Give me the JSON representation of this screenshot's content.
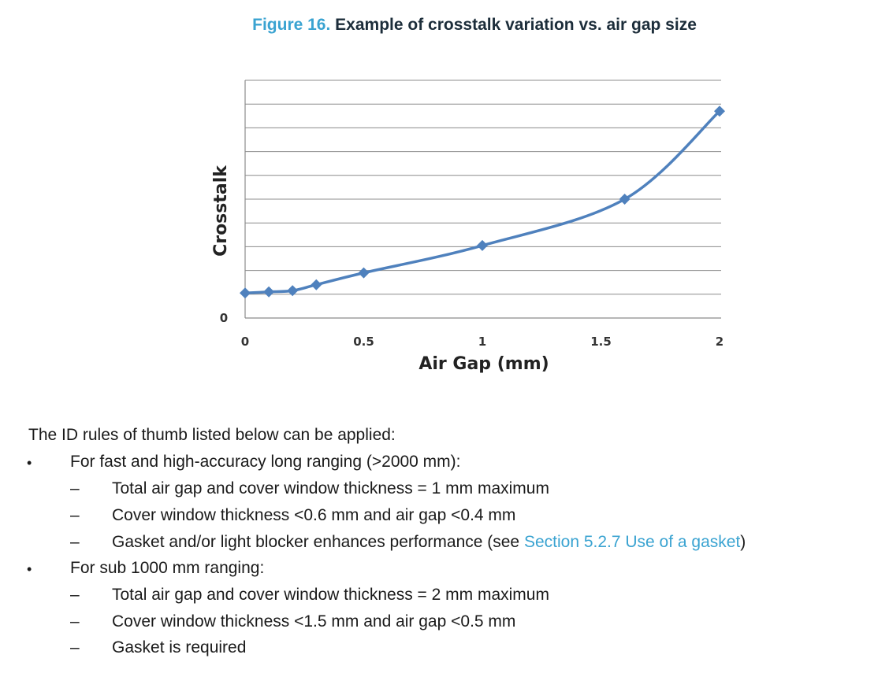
{
  "figure": {
    "number": "Figure 16.",
    "title": "Example of crosstalk variation vs. air gap size"
  },
  "chart_data": {
    "type": "line",
    "xlabel": "Air Gap (mm)",
    "ylabel": "Crosstalk",
    "x_ticks": [
      "0",
      "0.5",
      "1",
      "1.5",
      "2"
    ],
    "y_ticks": [
      "0"
    ],
    "xlim": [
      0,
      2
    ],
    "ylim": [
      0,
      10
    ],
    "grid": true,
    "series": [
      {
        "x": [
          0,
          0.1,
          0.2,
          0.3,
          0.5,
          1.0,
          1.6,
          2.0
        ],
        "y": [
          1.05,
          1.1,
          1.15,
          1.4,
          1.9,
          3.05,
          5.0,
          8.7
        ],
        "color": "#4f81bd",
        "marker": "diamond"
      }
    ]
  },
  "body": {
    "intro": "The ID rules of thumb listed below can be applied:",
    "bullet_symbol": "•",
    "dash_symbol": "–",
    "bullets": [
      {
        "text": "For fast and high-accuracy long ranging (>2000 mm):",
        "subitems": [
          {
            "text": "Total air gap and cover window thickness = 1 mm maximum"
          },
          {
            "text": "Cover window thickness <0.6 mm and air gap <0.4 mm"
          },
          {
            "text": "Gasket and/or light blocker enhances performance (see ",
            "link": "Section 5.2.7 Use of a gasket",
            "after": ")"
          }
        ]
      },
      {
        "text": "For sub 1000 mm ranging:",
        "subitems": [
          {
            "text": "Total air gap and cover window thickness = 2 mm maximum"
          },
          {
            "text": "Cover window thickness <1.5 mm and air gap <0.5 mm"
          },
          {
            "text": "Gasket is required"
          }
        ]
      }
    ]
  }
}
